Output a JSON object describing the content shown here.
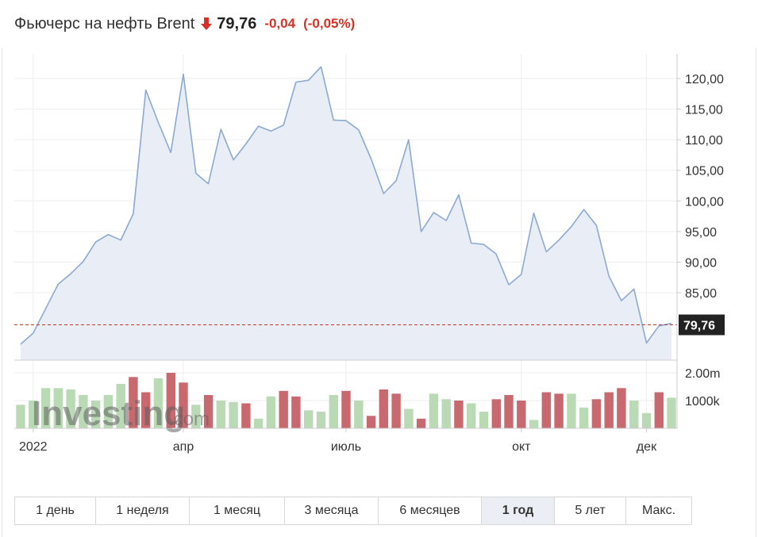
{
  "header": {
    "title": "Фьючерс на нефть Brent",
    "price": "79,76",
    "change": "-0,04",
    "change_percent": "(-0,05%)",
    "change_direction": "down",
    "down_color": "#d93025"
  },
  "watermark": {
    "brand": "Investing",
    "suffix": ".com"
  },
  "periods": {
    "items": [
      {
        "label": "1 день",
        "active": false
      },
      {
        "label": "1 неделя",
        "active": false
      },
      {
        "label": "1 месяц",
        "active": false
      },
      {
        "label": "3 месяца",
        "active": false
      },
      {
        "label": "6 месяцев",
        "active": false
      },
      {
        "label": "1 год",
        "active": true
      },
      {
        "label": "5 лет",
        "active": false
      },
      {
        "label": "Макс.",
        "active": false
      }
    ]
  },
  "chart_data": {
    "type": "area",
    "x_tick_labels": [
      "2022",
      "апр",
      "июль",
      "окт",
      "дек"
    ],
    "x_tick_index": [
      1,
      13,
      26,
      40,
      50
    ],
    "y_tick_labels": [
      "120,00",
      "115,00",
      "110,00",
      "105,00",
      "100,00",
      "95,00",
      "90,00",
      "85,00"
    ],
    "y_ticks": [
      120,
      115,
      110,
      105,
      100,
      95,
      90,
      85
    ],
    "ylim": [
      74,
      124
    ],
    "current_value": 79.76,
    "current_label": "79,76",
    "price_series": [
      76.6,
      78.4,
      82.4,
      86.4,
      88.1,
      90.1,
      93.3,
      94.5,
      93.6,
      97.9,
      118.1,
      112.8,
      107.9,
      120.7,
      104.5,
      102.8,
      111.7,
      106.7,
      109.3,
      112.2,
      111.4,
      112.4,
      119.4,
      119.7,
      121.9,
      113.2,
      113.1,
      111.6,
      106.9,
      101.2,
      103.3,
      110.0,
      95.0,
      98.1,
      96.8,
      101.0,
      93.1,
      92.9,
      91.3,
      86.3,
      88.0,
      98.0,
      91.7,
      93.6,
      95.8,
      98.6,
      96.0,
      87.7,
      83.7,
      85.6,
      76.8,
      79.6,
      80.0
    ],
    "volume_axis_labels": [
      "2.00m",
      "1000k"
    ],
    "volume_ticks": [
      2000000,
      1000000
    ],
    "volume_ylim": [
      0,
      2000000
    ],
    "volumes": [
      850000,
      1000000,
      1450000,
      1450000,
      1400000,
      1200000,
      1000000,
      1200000,
      1600000,
      1850000,
      1300000,
      1800000,
      2000000,
      1650000,
      850000,
      1200000,
      1000000,
      950000,
      900000,
      350000,
      1150000,
      1350000,
      1150000,
      650000,
      600000,
      1200000,
      1350000,
      1000000,
      450000,
      1400000,
      1250000,
      700000,
      350000,
      1250000,
      1050000,
      1000000,
      900000,
      600000,
      1050000,
      1200000,
      1000000,
      300000,
      1300000,
      1250000,
      1250000,
      750000,
      1050000,
      1300000,
      1450000,
      1000000,
      550000,
      1300000,
      1100000
    ],
    "volume_directions": [
      "up",
      "up",
      "up",
      "up",
      "up",
      "up",
      "up",
      "up",
      "up",
      "down",
      "down",
      "up",
      "down",
      "down",
      "up",
      "down",
      "up",
      "up",
      "down",
      "up",
      "up",
      "down",
      "down",
      "up",
      "up",
      "up",
      "down",
      "up",
      "down",
      "down",
      "down",
      "up",
      "down",
      "up",
      "up",
      "down",
      "up",
      "up",
      "down",
      "down",
      "down",
      "up",
      "down",
      "down",
      "up",
      "up",
      "down",
      "down",
      "down",
      "up",
      "up",
      "down",
      "up"
    ],
    "colors": {
      "line": "#8aa9d4",
      "area": "#e9edf6",
      "current_line": "#c0392b",
      "volume_up": "#b9dab4",
      "volume_down": "#c7696e",
      "grid": "#eeeeee",
      "axis": "#cccccc",
      "label_bg": "#222222"
    }
  }
}
